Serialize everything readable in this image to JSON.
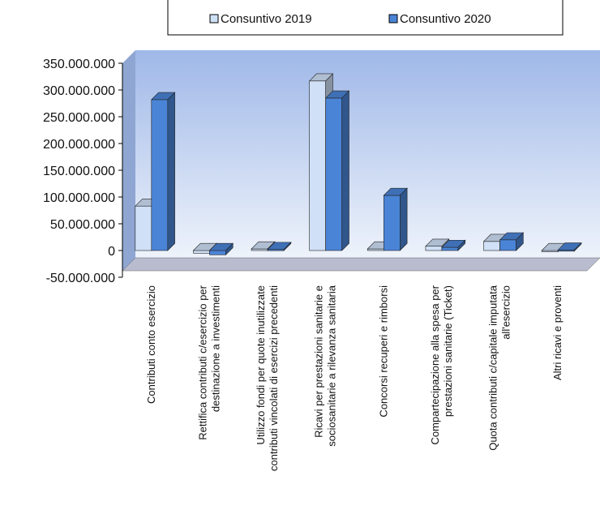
{
  "chart_data": {
    "type": "bar",
    "title": "",
    "xlabel": "",
    "ylabel": "",
    "ylim": [
      -50000000,
      350000000
    ],
    "yticks": [
      "350.000.000",
      "300.000.000",
      "250.000.000",
      "200.000.000",
      "150.000.000",
      "100.000.000",
      "50.000.000",
      "0",
      "-50.000.000"
    ],
    "categories": [
      [
        "Contributi conto esercizio"
      ],
      [
        "Rettifica contributi c/esercizio per",
        "destinazione a investimenti"
      ],
      [
        "Utilizzo fondi per quote inutilizzate",
        "contributi vincolati di esercizi precedenti"
      ],
      [
        "Ricavi per prestazioni sanitarie e",
        "sociosanitarie a rilevanza sanitaria"
      ],
      [
        "Concorsi recuperi e rimborsi"
      ],
      [
        "Compartecipazione alla spesa per",
        "prestazioni sanitarie (Ticket)"
      ],
      [
        "Quota contributi c/capitale imputata",
        "all'esercizio"
      ],
      [
        "Altri ricavi e proventi"
      ]
    ],
    "series": [
      {
        "name": "Consuntivo 2019",
        "color": "#cfe0f7",
        "values": [
          83000000,
          -5000000,
          3000000,
          317000000,
          3000000,
          8000000,
          17000000,
          0
        ]
      },
      {
        "name": "Consuntivo 2020",
        "color": "#4a84d6",
        "values": [
          282000000,
          -8000000,
          2000000,
          285000000,
          103000000,
          6000000,
          20000000,
          1000000
        ]
      }
    ],
    "legend_position": "top",
    "grid": false,
    "colors": {
      "plot_background_top": "#9fb8e8",
      "plot_background_bottom": "#eef3fb",
      "floor": "#b9bccf"
    }
  }
}
